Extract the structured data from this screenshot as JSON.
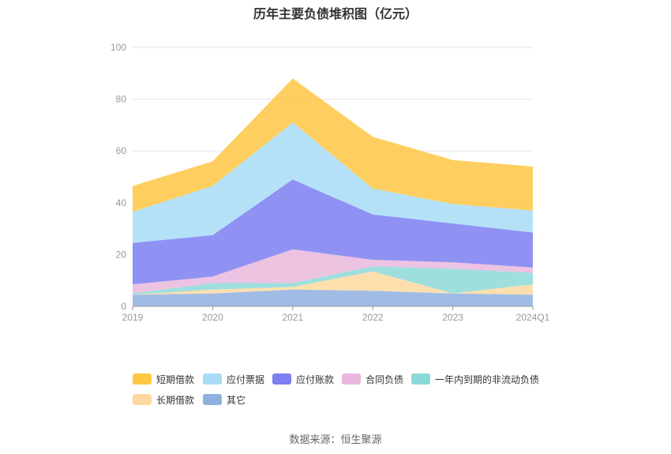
{
  "chart_data": {
    "type": "area",
    "stacked": true,
    "title": "历年主要负债堆积图（亿元）",
    "categories": [
      "2019",
      "2020",
      "2021",
      "2022",
      "2023",
      "2024Q1"
    ],
    "ylim": [
      0,
      100
    ],
    "y_ticks": [
      "0",
      "20",
      "40",
      "60",
      "80",
      "100"
    ],
    "grid": true,
    "legend_position": "bottom",
    "series": [
      {
        "name": "其它",
        "color": "#8fb0e0",
        "values": [
          4.5,
          5.0,
          6.5,
          6.0,
          5.0,
          4.5
        ]
      },
      {
        "name": "长期借款",
        "color": "#fdd9a0",
        "values": [
          0.0,
          1.5,
          1.0,
          7.5,
          0.0,
          4.0
        ]
      },
      {
        "name": "一年内到期的非流动负债",
        "color": "#8dd9d8",
        "values": [
          0.5,
          2.5,
          1.5,
          2.0,
          9.5,
          4.5
        ]
      },
      {
        "name": "合同负债",
        "color": "#e9b8dc",
        "values": [
          3.5,
          2.5,
          13.0,
          2.5,
          2.5,
          2.0
        ]
      },
      {
        "name": "应付账款",
        "color": "#7b7ff0",
        "values": [
          16.0,
          16.0,
          27.0,
          17.5,
          15.0,
          13.5
        ]
      },
      {
        "name": "应付票据",
        "color": "#a8dcf7",
        "values": [
          12.0,
          19.0,
          22.0,
          10.0,
          7.5,
          8.5
        ]
      },
      {
        "name": "短期借款",
        "color": "#fec744",
        "values": [
          10.0,
          9.5,
          17.0,
          20.0,
          17.0,
          17.0
        ]
      }
    ]
  },
  "legend": {
    "items": [
      "短期借款",
      "应付票据",
      "应付账款",
      "合同负债",
      "一年内到期的非流动负债",
      "长期借款",
      "其它"
    ]
  },
  "source": "数据来源：恒生聚源"
}
